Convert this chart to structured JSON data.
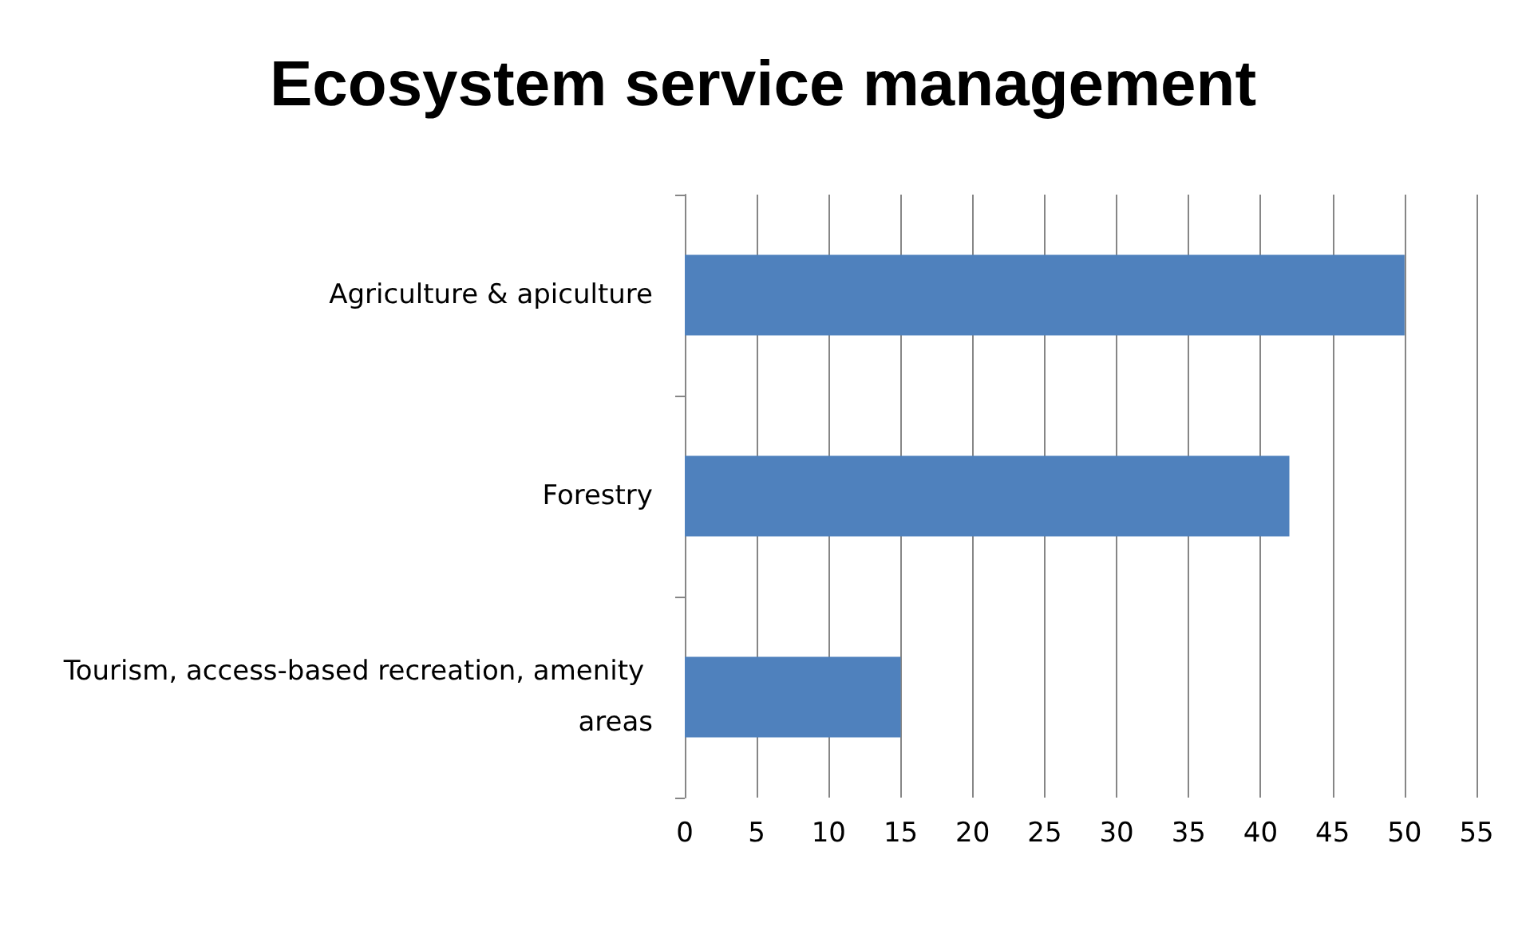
{
  "chart_data": {
    "type": "bar",
    "orientation": "horizontal",
    "title": "Ecosystem service management",
    "categories": [
      "Agriculture & apiculture",
      "Forestry",
      "Tourism, access-based recreation, amenity areas"
    ],
    "values": [
      50,
      42,
      15
    ],
    "color": "#4f81bd",
    "xlim": [
      0,
      55
    ],
    "xticks": [
      0,
      5,
      10,
      15,
      20,
      25,
      30,
      35,
      40,
      45,
      50,
      55
    ],
    "grid": "x"
  }
}
